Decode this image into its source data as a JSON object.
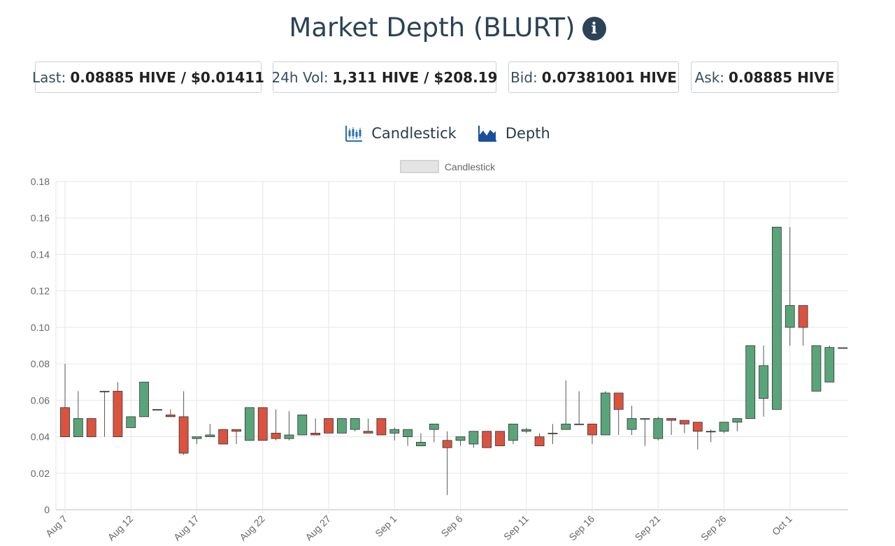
{
  "header": {
    "title": "Market Depth (BLURT)",
    "info_icon": "info-icon"
  },
  "stats": [
    {
      "label": "Last:",
      "value": "0.08885 HIVE / $0.01411"
    },
    {
      "label": "24h Vol:",
      "value": "1,311 HIVE / $208.19"
    },
    {
      "label": "Bid:",
      "value": "0.07381001 HIVE"
    },
    {
      "label": "Ask:",
      "value": "0.08885 HIVE"
    }
  ],
  "tabs": [
    {
      "label": "Candlestick",
      "icon": "candlestick-chart-icon"
    },
    {
      "label": "Depth",
      "icon": "depth-chart-icon"
    }
  ],
  "colors": {
    "up": "#5aa47a",
    "down": "#d9533f",
    "wick": "#555555",
    "title": "#2b4257"
  },
  "chart_data": {
    "type": "candlestick",
    "legend": {
      "label": "Candlestick",
      "position": "top-center"
    },
    "ylim": [
      0,
      0.18
    ],
    "yticks": [
      "0",
      "0.02",
      "0.04",
      "0.06",
      "0.08",
      "0.10",
      "0.12",
      "0.14",
      "0.16",
      "0.18"
    ],
    "grid": true,
    "xticks": [
      "Aug 7",
      "Aug 12",
      "Aug 17",
      "Aug 22",
      "Aug 27",
      "Sep 1",
      "Sep 6",
      "Sep 11",
      "Sep 16",
      "Sep 21",
      "Sep 26",
      "Oct 1"
    ],
    "candles": [
      {
        "date": "Aug 7",
        "open": 0.056,
        "high": 0.08,
        "low": 0.04,
        "close": 0.04
      },
      {
        "date": "Aug 8",
        "open": 0.04,
        "high": 0.065,
        "low": 0.04,
        "close": 0.05
      },
      {
        "date": "Aug 9",
        "open": 0.05,
        "high": 0.05,
        "low": 0.04,
        "close": 0.04
      },
      {
        "date": "Aug 10",
        "open": 0.065,
        "high": 0.065,
        "low": 0.04,
        "close": 0.065
      },
      {
        "date": "Aug 11",
        "open": 0.065,
        "high": 0.07,
        "low": 0.04,
        "close": 0.04
      },
      {
        "date": "Aug 12",
        "open": 0.045,
        "high": 0.051,
        "low": 0.045,
        "close": 0.051
      },
      {
        "date": "Aug 13",
        "open": 0.051,
        "high": 0.07,
        "low": 0.051,
        "close": 0.07
      },
      {
        "date": "Aug 14",
        "open": 0.055,
        "high": 0.055,
        "low": 0.055,
        "close": 0.055
      },
      {
        "date": "Aug 15",
        "open": 0.052,
        "high": 0.055,
        "low": 0.051,
        "close": 0.051
      },
      {
        "date": "Aug 16",
        "open": 0.051,
        "high": 0.065,
        "low": 0.03,
        "close": 0.031
      },
      {
        "date": "Aug 17",
        "open": 0.039,
        "high": 0.04,
        "low": 0.036,
        "close": 0.04
      },
      {
        "date": "Aug 18",
        "open": 0.04,
        "high": 0.047,
        "low": 0.04,
        "close": 0.041
      },
      {
        "date": "Aug 19",
        "open": 0.044,
        "high": 0.044,
        "low": 0.036,
        "close": 0.036
      },
      {
        "date": "Aug 20",
        "open": 0.044,
        "high": 0.044,
        "low": 0.036,
        "close": 0.043
      },
      {
        "date": "Aug 21",
        "open": 0.038,
        "high": 0.056,
        "low": 0.038,
        "close": 0.056
      },
      {
        "date": "Aug 22",
        "open": 0.056,
        "high": 0.056,
        "low": 0.038,
        "close": 0.038
      },
      {
        "date": "Aug 23",
        "open": 0.042,
        "high": 0.055,
        "low": 0.038,
        "close": 0.039
      },
      {
        "date": "Aug 24",
        "open": 0.039,
        "high": 0.054,
        "low": 0.038,
        "close": 0.041
      },
      {
        "date": "Aug 25",
        "open": 0.041,
        "high": 0.052,
        "low": 0.041,
        "close": 0.052
      },
      {
        "date": "Aug 26",
        "open": 0.042,
        "high": 0.05,
        "low": 0.041,
        "close": 0.041
      },
      {
        "date": "Aug 27",
        "open": 0.05,
        "high": 0.05,
        "low": 0.042,
        "close": 0.042
      },
      {
        "date": "Aug 28",
        "open": 0.042,
        "high": 0.05,
        "low": 0.042,
        "close": 0.05
      },
      {
        "date": "Aug 29",
        "open": 0.044,
        "high": 0.05,
        "low": 0.043,
        "close": 0.05
      },
      {
        "date": "Aug 30",
        "open": 0.043,
        "high": 0.05,
        "low": 0.042,
        "close": 0.042
      },
      {
        "date": "Aug 31",
        "open": 0.05,
        "high": 0.05,
        "low": 0.041,
        "close": 0.041
      },
      {
        "date": "Sep 1",
        "open": 0.042,
        "high": 0.045,
        "low": 0.038,
        "close": 0.044
      },
      {
        "date": "Sep 2",
        "open": 0.04,
        "high": 0.044,
        "low": 0.035,
        "close": 0.044
      },
      {
        "date": "Sep 3",
        "open": 0.035,
        "high": 0.042,
        "low": 0.035,
        "close": 0.037
      },
      {
        "date": "Sep 4",
        "open": 0.044,
        "high": 0.047,
        "low": 0.037,
        "close": 0.047
      },
      {
        "date": "Sep 5",
        "open": 0.038,
        "high": 0.043,
        "low": 0.008,
        "close": 0.034
      },
      {
        "date": "Sep 6",
        "open": 0.038,
        "high": 0.04,
        "low": 0.035,
        "close": 0.04
      },
      {
        "date": "Sep 7",
        "open": 0.036,
        "high": 0.043,
        "low": 0.034,
        "close": 0.043
      },
      {
        "date": "Sep 8",
        "open": 0.043,
        "high": 0.043,
        "low": 0.034,
        "close": 0.034
      },
      {
        "date": "Sep 9",
        "open": 0.043,
        "high": 0.043,
        "low": 0.035,
        "close": 0.035
      },
      {
        "date": "Sep 10",
        "open": 0.038,
        "high": 0.047,
        "low": 0.036,
        "close": 0.047
      },
      {
        "date": "Sep 11",
        "open": 0.043,
        "high": 0.045,
        "low": 0.042,
        "close": 0.044
      },
      {
        "date": "Sep 12",
        "open": 0.04,
        "high": 0.042,
        "low": 0.035,
        "close": 0.035
      },
      {
        "date": "Sep 13",
        "open": 0.042,
        "high": 0.047,
        "low": 0.036,
        "close": 0.042
      },
      {
        "date": "Sep 14",
        "open": 0.044,
        "high": 0.071,
        "low": 0.044,
        "close": 0.047
      },
      {
        "date": "Sep 15",
        "open": 0.047,
        "high": 0.065,
        "low": 0.047,
        "close": 0.047
      },
      {
        "date": "Sep 16",
        "open": 0.047,
        "high": 0.047,
        "low": 0.036,
        "close": 0.041
      },
      {
        "date": "Sep 17",
        "open": 0.041,
        "high": 0.065,
        "low": 0.041,
        "close": 0.064
      },
      {
        "date": "Sep 18",
        "open": 0.064,
        "high": 0.064,
        "low": 0.041,
        "close": 0.055
      },
      {
        "date": "Sep 19",
        "open": 0.044,
        "high": 0.057,
        "low": 0.041,
        "close": 0.05
      },
      {
        "date": "Sep 20",
        "open": 0.05,
        "high": 0.05,
        "low": 0.035,
        "close": 0.05
      },
      {
        "date": "Sep 21",
        "open": 0.039,
        "high": 0.051,
        "low": 0.038,
        "close": 0.05
      },
      {
        "date": "Sep 22",
        "open": 0.05,
        "high": 0.05,
        "low": 0.041,
        "close": 0.049
      },
      {
        "date": "Sep 23",
        "open": 0.049,
        "high": 0.049,
        "low": 0.042,
        "close": 0.047
      },
      {
        "date": "Sep 24",
        "open": 0.048,
        "high": 0.048,
        "low": 0.033,
        "close": 0.043
      },
      {
        "date": "Sep 25",
        "open": 0.043,
        "high": 0.044,
        "low": 0.037,
        "close": 0.043
      },
      {
        "date": "Sep 26",
        "open": 0.043,
        "high": 0.048,
        "low": 0.042,
        "close": 0.048
      },
      {
        "date": "Sep 27",
        "open": 0.048,
        "high": 0.05,
        "low": 0.043,
        "close": 0.05
      },
      {
        "date": "Sep 28",
        "open": 0.05,
        "high": 0.09,
        "low": 0.05,
        "close": 0.09
      },
      {
        "date": "Sep 29",
        "open": 0.061,
        "high": 0.09,
        "low": 0.051,
        "close": 0.079
      },
      {
        "date": "Sep 30",
        "open": 0.055,
        "high": 0.155,
        "low": 0.055,
        "close": 0.155
      },
      {
        "date": "Oct 1",
        "open": 0.1,
        "high": 0.155,
        "low": 0.09,
        "close": 0.112
      },
      {
        "date": "Oct 2",
        "open": 0.112,
        "high": 0.112,
        "low": 0.09,
        "close": 0.1
      },
      {
        "date": "Oct 3",
        "open": 0.065,
        "high": 0.09,
        "low": 0.065,
        "close": 0.09
      },
      {
        "date": "Oct 4",
        "open": 0.07,
        "high": 0.09,
        "low": 0.07,
        "close": 0.089
      },
      {
        "date": "Oct 5",
        "open": 0.08885,
        "high": 0.08885,
        "low": 0.08885,
        "close": 0.08885
      }
    ]
  }
}
